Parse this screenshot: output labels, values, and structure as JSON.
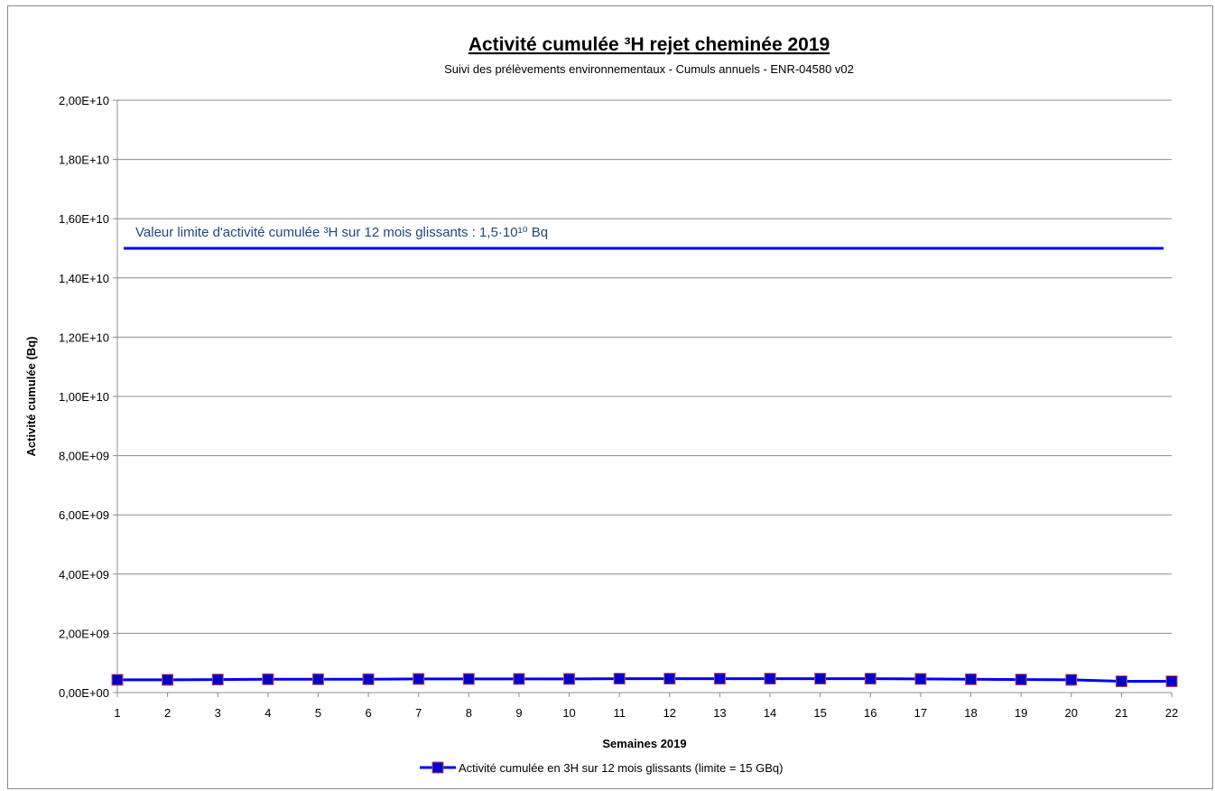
{
  "chart_data": {
    "type": "line",
    "title": "Activité cumulée ³H rejet cheminée 2019",
    "subtitle": "Suivi des prélèvements environnementaux - Cumuls annuels - ENR-04580 v02",
    "xlabel": "Semaines 2019",
    "ylabel": "Activité cumulée (Bq)",
    "x": [
      1,
      2,
      3,
      4,
      5,
      6,
      7,
      8,
      9,
      10,
      11,
      12,
      13,
      14,
      15,
      16,
      17,
      18,
      19,
      20,
      21,
      22
    ],
    "x_ticks": [
      "1",
      "2",
      "3",
      "4",
      "5",
      "6",
      "7",
      "8",
      "9",
      "10",
      "11",
      "12",
      "13",
      "14",
      "15",
      "16",
      "17",
      "18",
      "19",
      "20",
      "21",
      "22"
    ],
    "ylim": [
      0,
      20000000000
    ],
    "y_ticks": [
      0,
      2000000000,
      4000000000,
      6000000000,
      8000000000,
      10000000000,
      12000000000,
      14000000000,
      16000000000,
      18000000000,
      20000000000
    ],
    "y_tick_labels": [
      "0,00E+00",
      "2,00E+09",
      "4,00E+09",
      "6,00E+09",
      "8,00E+09",
      "1,00E+10",
      "1,20E+10",
      "1,40E+10",
      "1,60E+10",
      "1,80E+10",
      "2,00E+10"
    ],
    "grid": "horizontal",
    "series": [
      {
        "name": "Activité cumulée en 3H sur 12 mois glissants (limite = 15 GBq)",
        "color": "#0000ff",
        "marker_color": "#0000cc",
        "marker_edge": "#c0504d",
        "values": [
          430000000,
          430000000,
          440000000,
          450000000,
          450000000,
          450000000,
          460000000,
          460000000,
          460000000,
          460000000,
          470000000,
          470000000,
          470000000,
          470000000,
          470000000,
          470000000,
          460000000,
          450000000,
          440000000,
          430000000,
          380000000,
          380000000
        ]
      }
    ],
    "limit_line": {
      "value": 15000000000,
      "color": "#0000ff",
      "label": "Valeur limite d'activité cumulée ³H sur 12 mois  glissants : 1,5·10¹⁰ Bq"
    },
    "legend_position": "bottom"
  }
}
